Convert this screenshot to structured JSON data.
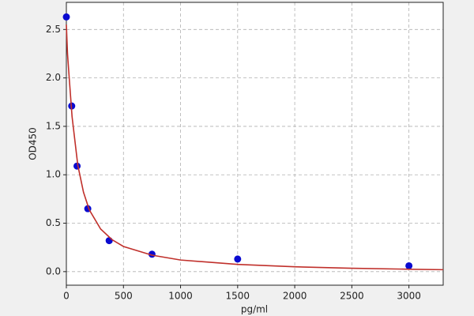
{
  "chart_data": {
    "type": "scatter",
    "xlabel": "pg/ml",
    "ylabel": "OD450",
    "xlim": [
      0,
      3300
    ],
    "ylim": [
      -0.14,
      2.78
    ],
    "xticks": [
      0,
      500,
      1000,
      1500,
      2000,
      2500,
      3000
    ],
    "yticks": [
      {
        "value": 0,
        "label": "0.0"
      },
      0.5,
      {
        "value": 1,
        "label": "1.0"
      },
      1.5,
      {
        "value": 2,
        "label": "2.0"
      },
      2.5
    ],
    "grid": true,
    "series": [
      {
        "type": "scatter",
        "color": "#0a0ad0",
        "x": [
          0,
          46.875,
          93.75,
          187.5,
          375,
          750,
          1500,
          3000
        ],
        "values": [
          2.63,
          1.71,
          1.09,
          0.65,
          0.32,
          0.18,
          0.13,
          0.06
        ]
      },
      {
        "type": "line",
        "color": "#c0302b",
        "x": [
          0,
          10,
          25,
          50,
          100,
          150,
          200,
          300,
          400,
          500,
          750,
          1000,
          1500,
          2000,
          2500,
          3000,
          3300
        ],
        "values": [
          2.55,
          2.25,
          2.0,
          1.6,
          1.1,
          0.82,
          0.64,
          0.44,
          0.33,
          0.26,
          0.17,
          0.12,
          0.075,
          0.05,
          0.035,
          0.025,
          0.02
        ]
      }
    ]
  }
}
